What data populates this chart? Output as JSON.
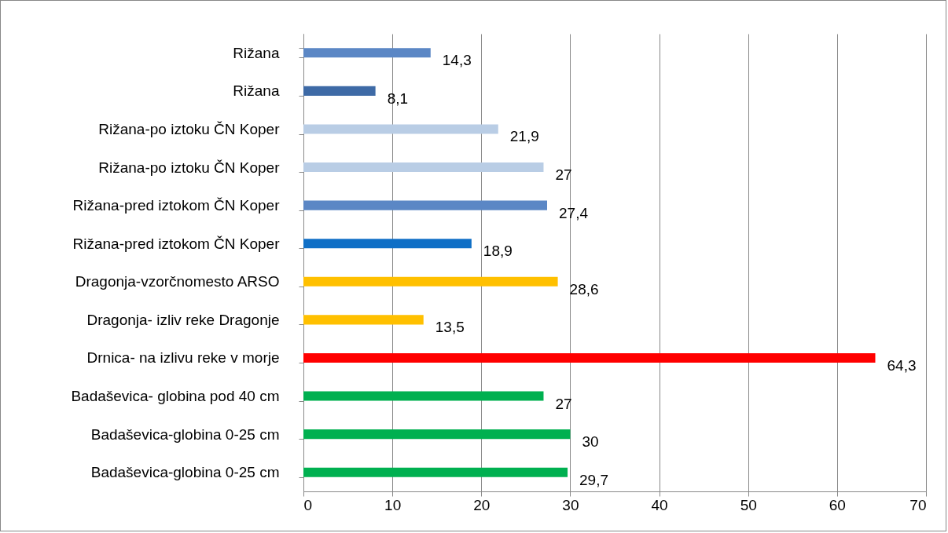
{
  "chart_data": {
    "type": "bar",
    "orientation": "horizontal",
    "categories": [
      "Rižana",
      "Rižana",
      "Rižana-po iztoku ČN Koper",
      "Rižana-po iztoku ČN Koper",
      "Rižana-pred iztokom ČN Koper",
      "Rižana-pred iztokom ČN Koper",
      "Dragonja-vzorčnomesto ARSO",
      "Dragonja- izliv reke Dragonje",
      "Drnica- na izlivu reke v morje",
      "Badaševica- globina pod 40 cm",
      "Badaševica-globina 0-25 cm",
      "Badaševica-globina 0-25 cm"
    ],
    "values": [
      14.3,
      8.1,
      21.9,
      27,
      27.4,
      18.9,
      28.6,
      13.5,
      64.3,
      27,
      30,
      29.7
    ],
    "colors": [
      "#5b87c5",
      "#3e6aa6",
      "#b9cde5",
      "#b9cde5",
      "#5b87c5",
      "#0f6fc6",
      "#ffc000",
      "#ffc000",
      "#ff0000",
      "#00b050",
      "#00b050",
      "#00b050"
    ],
    "value_labels": [
      "14,3",
      "8,1",
      "21,9",
      "27",
      "27,4",
      "18,9",
      "28,6",
      "13,5",
      "64,3",
      "27",
      "30",
      "29,7"
    ],
    "xlim": [
      0,
      70
    ],
    "xticks": [
      0,
      10,
      20,
      30,
      40,
      50,
      60,
      70
    ],
    "grid": "x"
  }
}
